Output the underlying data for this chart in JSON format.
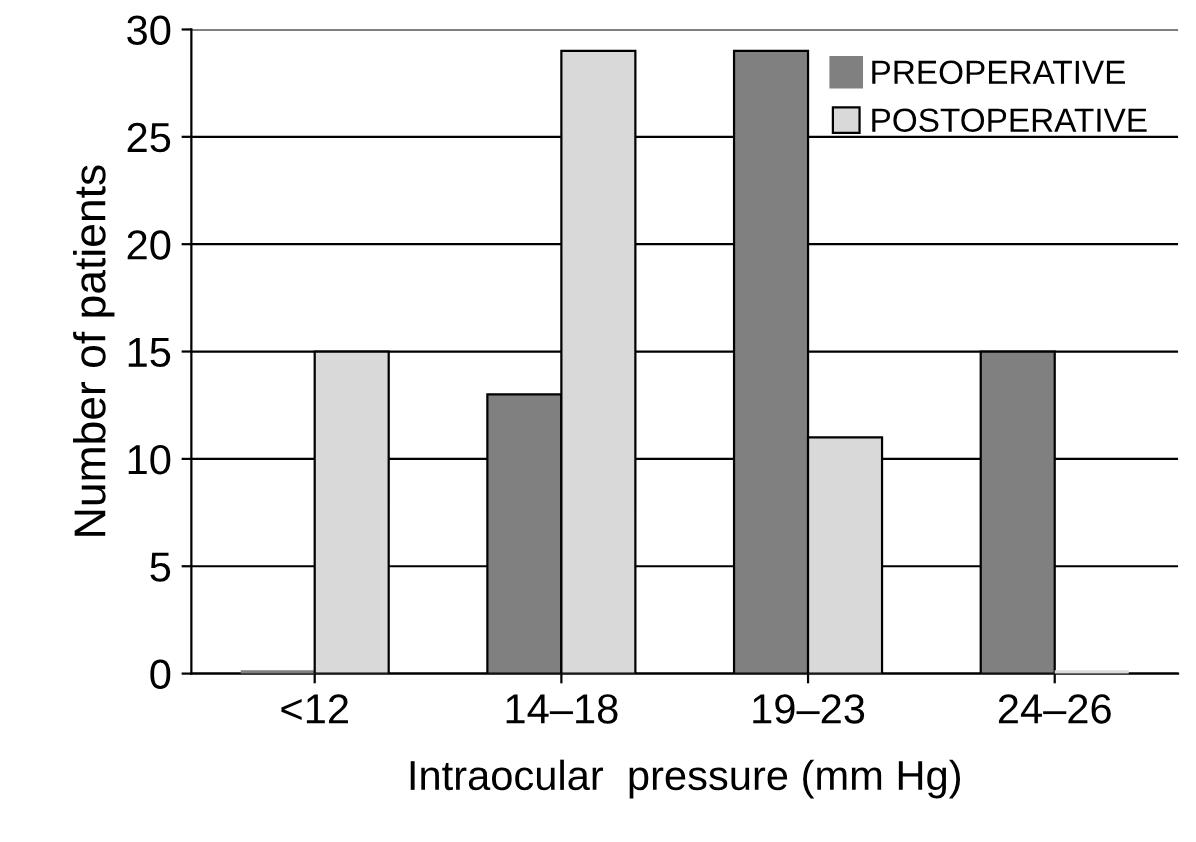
{
  "chart_data": {
    "type": "bar",
    "xlabel": "Intraocular  pressure (mm Hg)",
    "ylabel": "Number of patients",
    "categories": [
      "<12",
      "14–18",
      "19–23",
      "24–26"
    ],
    "series": [
      {
        "name": "PREOPERATIVE",
        "color": "#808080",
        "values": [
          0,
          13,
          29,
          15
        ]
      },
      {
        "name": "POSTOPERATIVE",
        "color": "#d9d9d9",
        "values": [
          15,
          29,
          11,
          0
        ]
      }
    ],
    "ylim": [
      0,
      30
    ],
    "yticks": [
      0,
      5,
      10,
      15,
      20,
      25,
      30
    ],
    "grid": "y",
    "legend": "top right"
  }
}
